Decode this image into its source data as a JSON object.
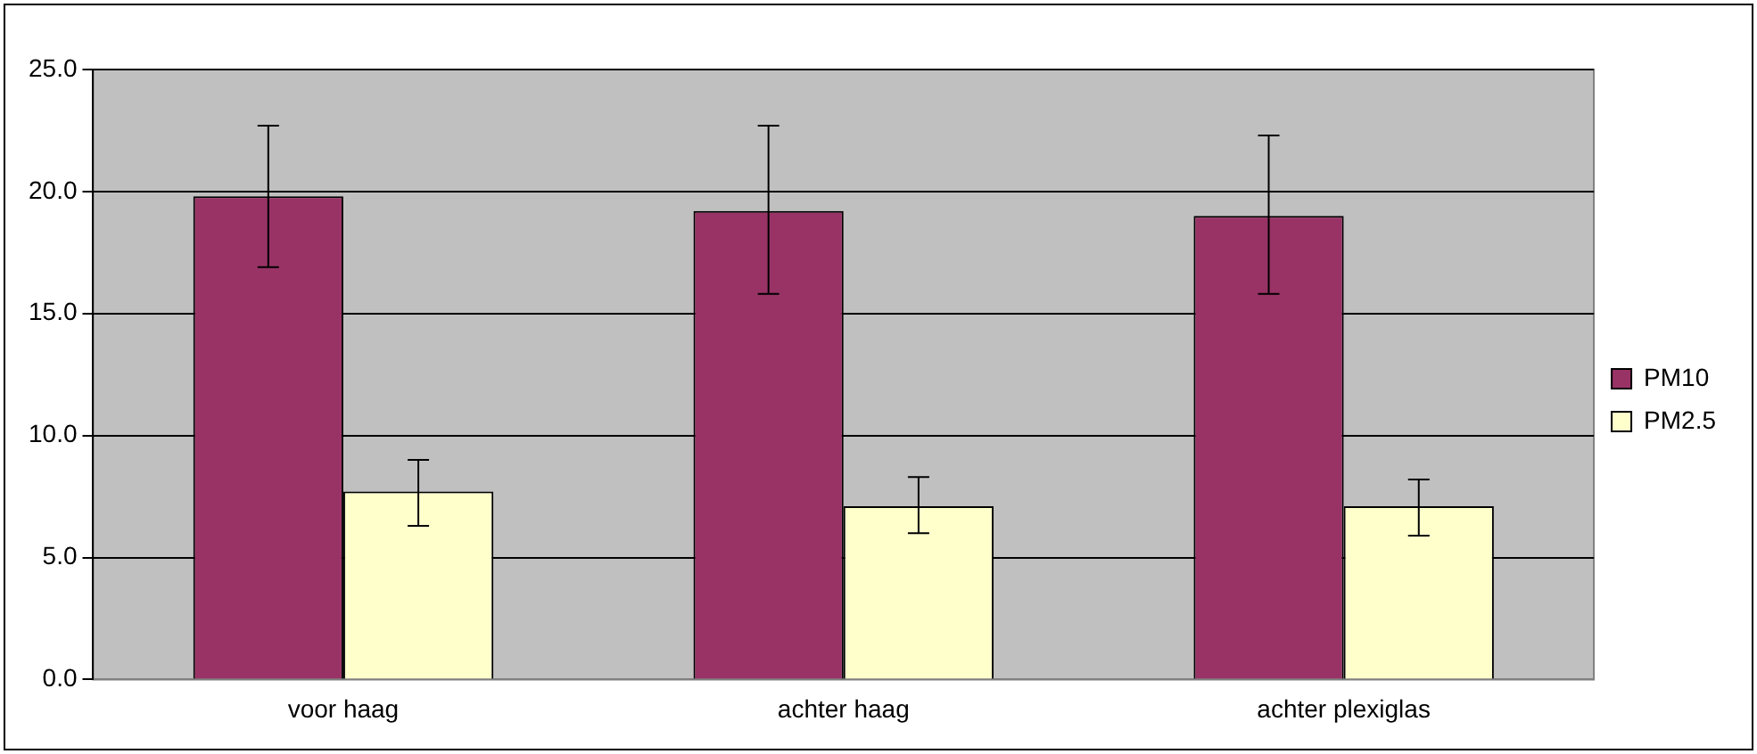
{
  "chart_data": {
    "type": "bar",
    "categories": [
      "voor haag",
      "achter haag",
      "achter plexiglas"
    ],
    "series": [
      {
        "name": "PM10",
        "color": "#993366",
        "values": [
          19.8,
          19.2,
          19.0
        ],
        "errors": [
          [
            16.9,
            22.7
          ],
          [
            15.8,
            22.7
          ],
          [
            15.8,
            22.3
          ]
        ]
      },
      {
        "name": "PM2.5",
        "color": "#ffffcc",
        "values": [
          7.7,
          7.1,
          7.1
        ],
        "errors": [
          [
            6.3,
            9.0
          ],
          [
            6.0,
            8.3
          ],
          [
            5.9,
            8.2
          ]
        ]
      }
    ],
    "ylim": [
      0,
      25
    ],
    "yticks": [
      {
        "value": 0,
        "label": "0.0"
      },
      {
        "value": 5,
        "label": "5.0"
      },
      {
        "value": 10,
        "label": "10.0"
      },
      {
        "value": 15,
        "label": "15.0"
      },
      {
        "value": 20,
        "label": "20.0"
      },
      {
        "value": 25,
        "label": "25.0"
      }
    ],
    "grid": "y",
    "legend": "right"
  }
}
